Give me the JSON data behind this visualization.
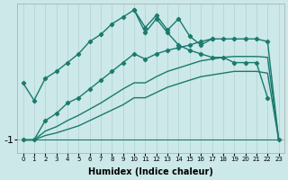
{
  "xlabel": "Humidex (Indice chaleur)",
  "bg_color": "#cce8e8",
  "grid_color": "#b8d8d8",
  "line_color": "#1a7a6e",
  "ytick_labels": [
    "-1"
  ],
  "ytick_vals": [
    -1
  ],
  "xlim": [
    -0.5,
    23.5
  ],
  "ylim": [
    -1.15,
    0.55
  ],
  "lines": [
    {
      "x": [
        0,
        1,
        2,
        3,
        4,
        5,
        6,
        7,
        8,
        9,
        10,
        11,
        12,
        13,
        14,
        15,
        16,
        17,
        18,
        19,
        20,
        21,
        22
      ],
      "y": [
        -0.35,
        -0.55,
        -0.3,
        -0.22,
        -0.12,
        -0.02,
        0.12,
        0.2,
        0.32,
        0.4,
        0.48,
        0.22,
        0.38,
        0.22,
        0.08,
        0.02,
        -0.02,
        -0.06,
        -0.06,
        -0.12,
        -0.12,
        -0.12,
        -0.52
      ],
      "marker": true,
      "lw": 1.0
    },
    {
      "x": [
        10,
        11,
        12,
        13,
        14,
        15,
        16,
        17
      ],
      "y": [
        0.48,
        0.28,
        0.42,
        0.25,
        0.38,
        0.18,
        0.08,
        0.15
      ],
      "marker": true,
      "lw": 1.0
    },
    {
      "x": [
        0,
        1,
        2,
        3,
        4,
        5,
        6,
        7,
        8,
        9,
        10,
        11,
        12,
        13,
        14,
        15,
        16,
        17,
        18,
        19,
        20,
        21,
        22,
        23
      ],
      "y": [
        -1.0,
        -1.0,
        -0.78,
        -0.7,
        -0.58,
        -0.52,
        -0.42,
        -0.32,
        -0.22,
        -0.12,
        -0.02,
        -0.08,
        -0.02,
        0.02,
        0.05,
        0.08,
        0.12,
        0.15,
        0.15,
        0.15,
        0.15,
        0.15,
        0.12,
        -1.0
      ],
      "marker": true,
      "lw": 1.0
    },
    {
      "x": [
        0,
        1,
        2,
        3,
        4,
        5,
        6,
        7,
        8,
        9,
        10,
        11,
        12,
        13,
        14,
        15,
        16,
        17,
        18,
        19,
        20,
        21,
        22,
        23
      ],
      "y": [
        -1.0,
        -1.0,
        -0.9,
        -0.85,
        -0.78,
        -0.72,
        -0.65,
        -0.58,
        -0.5,
        -0.42,
        -0.35,
        -0.35,
        -0.28,
        -0.22,
        -0.18,
        -0.14,
        -0.1,
        -0.08,
        -0.06,
        -0.05,
        -0.05,
        -0.05,
        -0.06,
        -1.0
      ],
      "marker": false,
      "lw": 1.0
    },
    {
      "x": [
        0,
        1,
        2,
        3,
        4,
        5,
        6,
        7,
        8,
        9,
        10,
        11,
        12,
        13,
        14,
        15,
        16,
        17,
        18,
        19,
        20,
        21,
        22,
        23
      ],
      "y": [
        -1.0,
        -1.0,
        -0.95,
        -0.92,
        -0.88,
        -0.84,
        -0.78,
        -0.72,
        -0.66,
        -0.6,
        -0.52,
        -0.52,
        -0.46,
        -0.4,
        -0.36,
        -0.32,
        -0.28,
        -0.26,
        -0.24,
        -0.22,
        -0.22,
        -0.22,
        -0.24,
        -1.0
      ],
      "marker": false,
      "lw": 1.0
    },
    {
      "x": [
        0,
        23
      ],
      "y": [
        -1.0,
        -1.0
      ],
      "marker": false,
      "lw": 0.8
    }
  ]
}
